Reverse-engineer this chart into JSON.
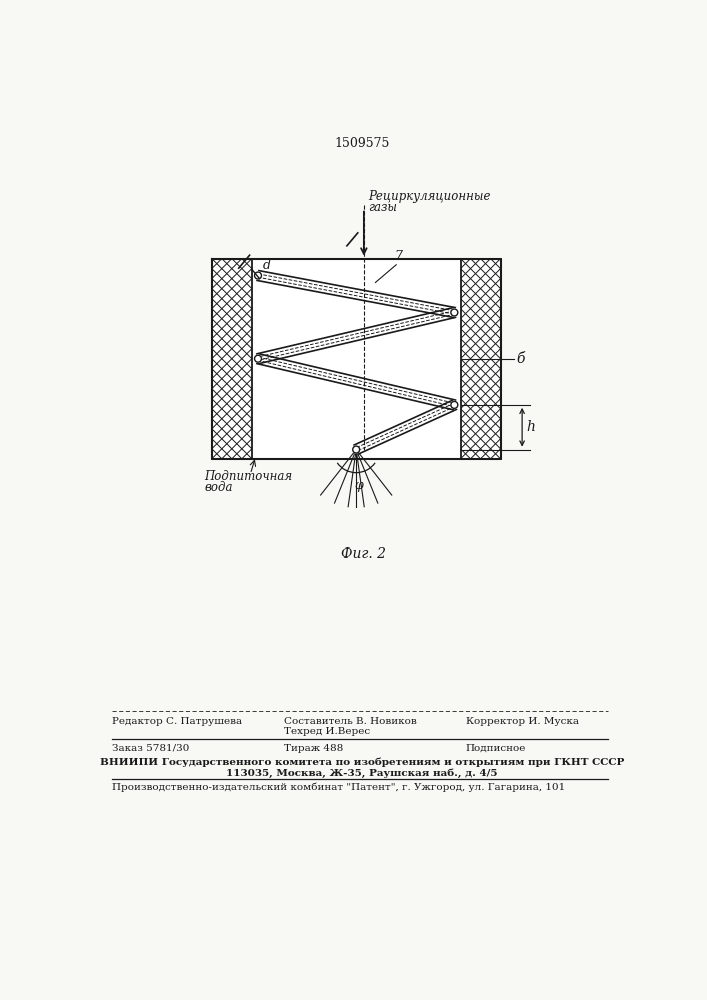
{
  "patent_number": "1509575",
  "fig_label": "Фиг. 2",
  "label_recycling_gases_line1": "Рециркуляционные",
  "label_recycling_gases_line2": "газы",
  "label_podpitochnaya_line1": "Подпиточная",
  "label_podpitochnaya_line2": "вода",
  "label_d": "d",
  "label_7": "7",
  "label_b": "б",
  "label_h": "h",
  "label_phi": "φ",
  "bg_color": "#f8f8f5",
  "line_color": "#1a1a1a",
  "footer_line1_left": "Редактор С. Патрушева",
  "footer_line1_center1": "Составитель В. Новиков",
  "footer_line1_center2": "Техред И.Верес",
  "footer_line1_right": "Корректор И. Муска",
  "footer_line2_left": "Заказ 5781/30",
  "footer_line2_center": "Тираж 488",
  "footer_line2_right": "Подписное",
  "footer_line3": "ВНИИПИ Государственного комитета по изобретениям и открытиям при ГКНТ СССР",
  "footer_line4": "113035, Москва, Ж-35, Раушская наб., д. 4/5",
  "footer_line5": "Производственно-издательский комбинат \"Патент\", г. Ужгород, ул. Гагарина, 101"
}
